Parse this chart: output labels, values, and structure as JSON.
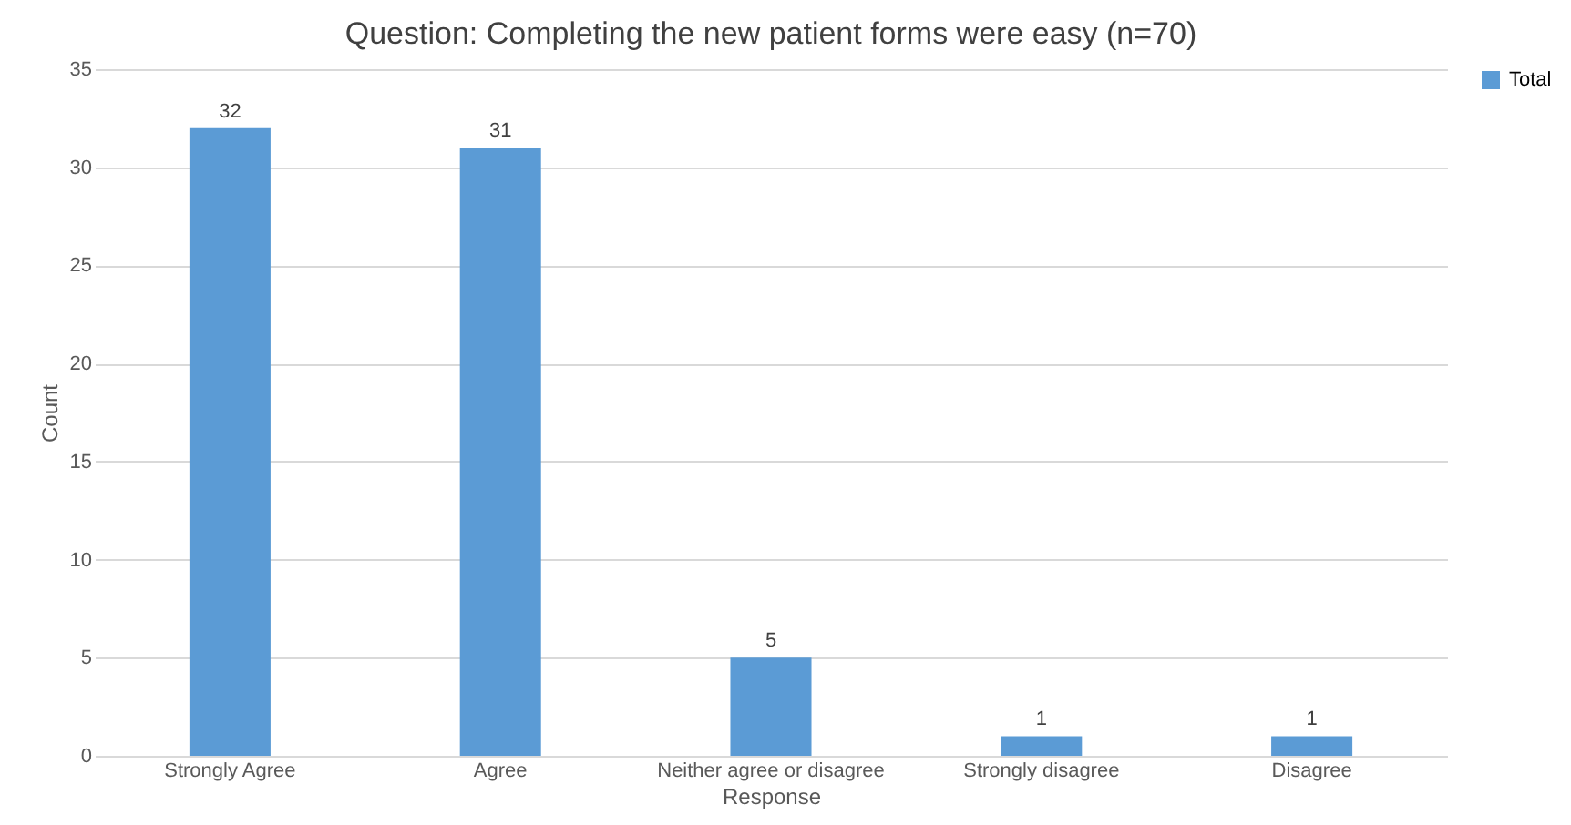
{
  "chart_data": {
    "type": "bar",
    "title": "Question: Completing the new patient forms were easy (n=70)",
    "xlabel": "Response",
    "ylabel": "Count",
    "categories": [
      "Strongly Agree",
      "Agree",
      "Neither agree or disagree",
      "Strongly disagree",
      "Disagree"
    ],
    "series": [
      {
        "name": "Total",
        "color": "#5b9bd5",
        "values": [
          32,
          31,
          5,
          1,
          1
        ]
      }
    ],
    "ylim": [
      0,
      35
    ],
    "yticks": [
      0,
      5,
      10,
      15,
      20,
      25,
      30,
      35
    ],
    "grid": "y",
    "legend": "right",
    "data_labels": true
  }
}
